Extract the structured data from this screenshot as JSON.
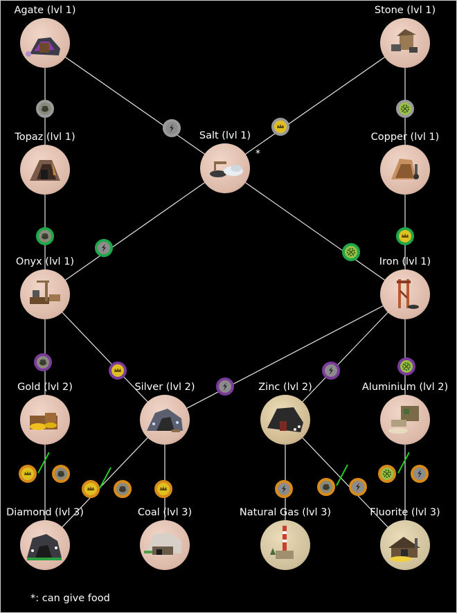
{
  "nodes": [
    {
      "id": "agate",
      "label": "Agate (lvl 1)",
      "bg": "#dcb8a8",
      "art": "agate"
    },
    {
      "id": "stone",
      "label": "Stone (lvl 1)",
      "bg": "#dcb8a8",
      "art": "stone"
    },
    {
      "id": "topaz",
      "label": "Topaz (lvl 1)",
      "bg": "#dcb8a8",
      "art": "topaz"
    },
    {
      "id": "salt",
      "label": "Salt (lvl 1)",
      "bg": "#dcb8a8",
      "art": "salt"
    },
    {
      "id": "copper",
      "label": "Copper (lvl 1)",
      "bg": "#dcb8a8",
      "art": "copper"
    },
    {
      "id": "onyx",
      "label": "Onyx (lvl 1)",
      "bg": "#dcb8a8",
      "art": "onyx"
    },
    {
      "id": "iron",
      "label": "Iron (lvl 1)",
      "bg": "#dcb8a8",
      "art": "iron"
    },
    {
      "id": "gold",
      "label": "Gold (lvl 2)",
      "bg": "#dcb8a8",
      "art": "gold"
    },
    {
      "id": "silver",
      "label": "Silver (lvl 2)",
      "bg": "#dcb8a8",
      "art": "silver"
    },
    {
      "id": "zinc",
      "label": "Zinc (lvl 2)",
      "bg": "#cfb890",
      "art": "zinc"
    },
    {
      "id": "aluminium",
      "label": "Aluminium (lvl 2)",
      "bg": "#dcb8a8",
      "art": "aluminium"
    },
    {
      "id": "diamond",
      "label": "Diamond (lvl 3)",
      "bg": "#dcb8a8",
      "art": "diamond"
    },
    {
      "id": "coal",
      "label": "Coal (lvl 3)",
      "bg": "#dcb8a8",
      "art": "coal"
    },
    {
      "id": "natural_gas",
      "label": "Natural Gas (lvl 3)",
      "bg": "#cfc09c",
      "art": "gas"
    },
    {
      "id": "fluorite",
      "label": "Fluorite (lvl 3)",
      "bg": "#cfc09c",
      "art": "fluorite"
    }
  ],
  "edges": [
    [
      "agate",
      "topaz"
    ],
    [
      "agate",
      "salt"
    ],
    [
      "stone",
      "salt"
    ],
    [
      "stone",
      "copper"
    ],
    [
      "topaz",
      "onyx"
    ],
    [
      "salt",
      "onyx"
    ],
    [
      "salt",
      "iron"
    ],
    [
      "copper",
      "iron"
    ],
    [
      "onyx",
      "gold"
    ],
    [
      "onyx",
      "silver"
    ],
    [
      "iron",
      "silver"
    ],
    [
      "iron",
      "zinc"
    ],
    [
      "iron",
      "aluminium"
    ],
    [
      "gold",
      "diamond"
    ],
    [
      "silver",
      "diamond"
    ],
    [
      "silver",
      "coal"
    ],
    [
      "zinc",
      "natural_gas"
    ],
    [
      "zinc",
      "fluorite"
    ],
    [
      "aluminium",
      "fluorite"
    ]
  ],
  "salt_marker": "*",
  "badges": [
    {
      "ring": "silver",
      "symbol": "food"
    },
    {
      "ring": "silver",
      "symbol": "gear"
    },
    {
      "ring": "silver",
      "symbol": "lightning"
    },
    {
      "ring": "silver",
      "symbol": "crown"
    },
    {
      "ring": "green",
      "symbol": "food"
    },
    {
      "ring": "green",
      "symbol": "crown"
    },
    {
      "ring": "green",
      "symbol": "lightning"
    },
    {
      "ring": "green",
      "symbol": "gear"
    },
    {
      "ring": "purple",
      "symbol": "food"
    },
    {
      "ring": "purple",
      "symbol": "crown"
    },
    {
      "ring": "purple",
      "symbol": "lightning"
    },
    {
      "ring": "purple",
      "symbol": "lightning"
    },
    {
      "ring": "purple",
      "symbol": "gear"
    },
    {
      "ring": "orange",
      "symbol": "crown"
    },
    {
      "ring": "orange",
      "symbol": "food"
    },
    {
      "ring": "orange",
      "symbol": "crown"
    },
    {
      "ring": "orange",
      "symbol": "food"
    },
    {
      "ring": "orange",
      "symbol": "crown"
    },
    {
      "ring": "orange",
      "symbol": "lightning"
    },
    {
      "ring": "orange",
      "symbol": "food"
    },
    {
      "ring": "orange",
      "symbol": "lightning"
    },
    {
      "ring": "orange",
      "symbol": "gear"
    },
    {
      "ring": "orange",
      "symbol": "lightning"
    }
  ],
  "ring_colors": {
    "silver": "#9a9a9a",
    "green": "#1fa84a",
    "purple": "#7a3b9a",
    "orange": "#d88a1a"
  },
  "symbol_colors": {
    "food": "#8a8a7a",
    "gear": "#9ac048",
    "lightning": "#8c8c8c",
    "crown": "#e0c020"
  },
  "footnote": "*: can give food"
}
